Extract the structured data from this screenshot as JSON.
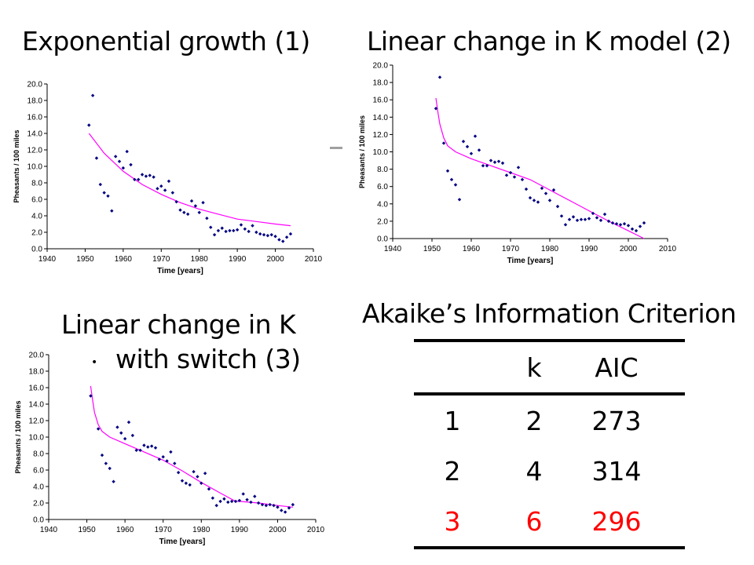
{
  "slide": {
    "titles": {
      "model1": "Exponential growth (1)",
      "model2": "Linear change in K model (2)",
      "model3_line1": "Linear change in K",
      "model3_line2": "with switch (3)",
      "aic": "Akaike’s Information Criterion"
    },
    "bullet": "•"
  },
  "aic_table": {
    "headers": [
      "",
      "k",
      "AIC"
    ],
    "rows": [
      {
        "model": "1",
        "k": "2",
        "aic": "273"
      },
      {
        "model": "2",
        "k": "4",
        "aic": "314"
      },
      {
        "model": "3",
        "k": "6",
        "aic": "296"
      }
    ],
    "highlight_color": "#ff0000"
  },
  "chart_data": [
    {
      "type": "scatter",
      "id": "exp",
      "xlabel": "Time [years]",
      "ylabel": "Pheasants / 100 miles",
      "xlim": [
        1940,
        2010
      ],
      "ylim": [
        0,
        20
      ],
      "xticks": [
        1940,
        1950,
        1960,
        1970,
        1980,
        1990,
        2000,
        2010
      ],
      "yticks": [
        0,
        2,
        4,
        6,
        8,
        10,
        12,
        14,
        16,
        18,
        20
      ],
      "grid": false,
      "point_color": "#000080",
      "fit_color": "#ff00ff",
      "points": [
        [
          1951,
          15.0
        ],
        [
          1952,
          18.6
        ],
        [
          1953,
          11.0
        ],
        [
          1954,
          7.8
        ],
        [
          1955,
          6.8
        ],
        [
          1956,
          6.4
        ],
        [
          1957,
          4.6
        ],
        [
          1958,
          11.2
        ],
        [
          1959,
          10.6
        ],
        [
          1960,
          9.8
        ],
        [
          1961,
          11.8
        ],
        [
          1962,
          10.2
        ],
        [
          1963,
          8.4
        ],
        [
          1964,
          8.4
        ],
        [
          1965,
          9.0
        ],
        [
          1966,
          8.8
        ],
        [
          1967,
          8.9
        ],
        [
          1968,
          8.7
        ],
        [
          1969,
          7.3
        ],
        [
          1970,
          7.6
        ],
        [
          1971,
          7.1
        ],
        [
          1972,
          8.2
        ],
        [
          1973,
          6.8
        ],
        [
          1974,
          5.7
        ],
        [
          1975,
          4.7
        ],
        [
          1976,
          4.4
        ],
        [
          1977,
          4.2
        ],
        [
          1978,
          5.8
        ],
        [
          1979,
          5.2
        ],
        [
          1980,
          4.4
        ],
        [
          1981,
          5.6
        ],
        [
          1982,
          3.7
        ],
        [
          1983,
          2.6
        ],
        [
          1984,
          1.7
        ],
        [
          1985,
          2.2
        ],
        [
          1986,
          2.5
        ],
        [
          1987,
          2.1
        ],
        [
          1988,
          2.2
        ],
        [
          1989,
          2.2
        ],
        [
          1990,
          2.3
        ],
        [
          1991,
          2.9
        ],
        [
          1992,
          2.4
        ],
        [
          1993,
          2.1
        ],
        [
          1994,
          2.8
        ],
        [
          1995,
          2.0
        ],
        [
          1996,
          1.8
        ],
        [
          1997,
          1.7
        ],
        [
          1998,
          1.6
        ],
        [
          1999,
          1.7
        ],
        [
          2000,
          1.5
        ],
        [
          2001,
          1.1
        ],
        [
          2002,
          0.9
        ],
        [
          2003,
          1.4
        ],
        [
          2004,
          1.8
        ]
      ],
      "fit": [
        [
          1951,
          14.0
        ],
        [
          1955,
          11.6
        ],
        [
          1960,
          9.4
        ],
        [
          1965,
          7.8
        ],
        [
          1970,
          6.6
        ],
        [
          1975,
          5.6
        ],
        [
          1980,
          4.8
        ],
        [
          1985,
          4.2
        ],
        [
          1990,
          3.6
        ],
        [
          1995,
          3.3
        ],
        [
          2000,
          3.0
        ],
        [
          2004,
          2.8
        ]
      ]
    },
    {
      "type": "scatter",
      "id": "linK",
      "xlabel": "Time [years]",
      "ylabel": "Pheasants / 100 miles",
      "xlim": [
        1940,
        2010
      ],
      "ylim": [
        0,
        20
      ],
      "xticks": [
        1940,
        1950,
        1960,
        1970,
        1980,
        1990,
        2000,
        2010
      ],
      "yticks": [
        0,
        2,
        4,
        6,
        8,
        10,
        12,
        14,
        16,
        18,
        20
      ],
      "grid": false,
      "point_color": "#000080",
      "fit_color": "#ff00ff",
      "points": [
        [
          1951,
          15.0
        ],
        [
          1952,
          18.6
        ],
        [
          1953,
          11.0
        ],
        [
          1954,
          7.8
        ],
        [
          1955,
          6.8
        ],
        [
          1956,
          6.2
        ],
        [
          1957,
          4.5
        ],
        [
          1958,
          11.2
        ],
        [
          1959,
          10.6
        ],
        [
          1960,
          9.8
        ],
        [
          1961,
          11.8
        ],
        [
          1962,
          10.2
        ],
        [
          1963,
          8.4
        ],
        [
          1964,
          8.4
        ],
        [
          1965,
          9.0
        ],
        [
          1966,
          8.8
        ],
        [
          1967,
          8.9
        ],
        [
          1968,
          8.7
        ],
        [
          1969,
          7.3
        ],
        [
          1970,
          7.6
        ],
        [
          1971,
          7.1
        ],
        [
          1972,
          8.2
        ],
        [
          1973,
          6.8
        ],
        [
          1974,
          5.7
        ],
        [
          1975,
          4.7
        ],
        [
          1976,
          4.4
        ],
        [
          1977,
          4.2
        ],
        [
          1978,
          5.8
        ],
        [
          1979,
          5.2
        ],
        [
          1980,
          4.4
        ],
        [
          1981,
          5.6
        ],
        [
          1982,
          3.7
        ],
        [
          1983,
          2.6
        ],
        [
          1984,
          1.6
        ],
        [
          1985,
          2.2
        ],
        [
          1986,
          2.5
        ],
        [
          1987,
          2.1
        ],
        [
          1988,
          2.2
        ],
        [
          1989,
          2.2
        ],
        [
          1990,
          2.3
        ],
        [
          1991,
          2.9
        ],
        [
          1992,
          2.4
        ],
        [
          1993,
          2.1
        ],
        [
          1994,
          2.8
        ],
        [
          1995,
          2.0
        ],
        [
          1996,
          1.8
        ],
        [
          1997,
          1.7
        ],
        [
          1998,
          1.6
        ],
        [
          1999,
          1.7
        ],
        [
          2000,
          1.5
        ],
        [
          2001,
          1.1
        ],
        [
          2002,
          0.9
        ],
        [
          2003,
          1.4
        ],
        [
          2004,
          1.8
        ]
      ],
      "fit": [
        [
          1951,
          16.2
        ],
        [
          1951.5,
          14.6
        ],
        [
          1952,
          13.2
        ],
        [
          1953,
          11.6
        ],
        [
          1954,
          10.7
        ],
        [
          1956,
          10.0
        ],
        [
          1960,
          9.2
        ],
        [
          1965,
          8.4
        ],
        [
          1970,
          7.6
        ],
        [
          1975,
          6.8
        ],
        [
          1980,
          5.6
        ],
        [
          1985,
          4.4
        ],
        [
          1990,
          3.2
        ],
        [
          1995,
          2.0
        ],
        [
          2000,
          0.9
        ],
        [
          2004,
          0.0
        ]
      ]
    },
    {
      "type": "scatter",
      "id": "linKswitch",
      "xlabel": "Time [years]",
      "ylabel": "Pheasants / 100 miles",
      "xlim": [
        1940,
        2010
      ],
      "ylim": [
        0,
        20
      ],
      "xticks": [
        1940,
        1950,
        1960,
        1970,
        1980,
        1990,
        2000,
        2010
      ],
      "yticks": [
        0,
        2,
        4,
        6,
        8,
        10,
        12,
        14,
        16,
        18,
        20
      ],
      "grid": false,
      "point_color": "#000080",
      "fit_color": "#ff00ff",
      "points": [
        [
          1951,
          15.0
        ],
        [
          1953,
          11.0
        ],
        [
          1954,
          7.8
        ],
        [
          1955,
          6.8
        ],
        [
          1956,
          6.2
        ],
        [
          1957,
          4.6
        ],
        [
          1958,
          11.2
        ],
        [
          1959,
          10.5
        ],
        [
          1960,
          9.8
        ],
        [
          1961,
          11.8
        ],
        [
          1962,
          10.2
        ],
        [
          1963,
          8.4
        ],
        [
          1964,
          8.4
        ],
        [
          1965,
          9.0
        ],
        [
          1966,
          8.8
        ],
        [
          1967,
          8.9
        ],
        [
          1968,
          8.7
        ],
        [
          1969,
          7.3
        ],
        [
          1970,
          7.6
        ],
        [
          1971,
          7.1
        ],
        [
          1972,
          8.2
        ],
        [
          1973,
          6.8
        ],
        [
          1974,
          5.7
        ],
        [
          1975,
          4.7
        ],
        [
          1976,
          4.4
        ],
        [
          1977,
          4.2
        ],
        [
          1978,
          5.8
        ],
        [
          1979,
          5.2
        ],
        [
          1980,
          4.4
        ],
        [
          1981,
          5.6
        ],
        [
          1982,
          3.7
        ],
        [
          1983,
          2.6
        ],
        [
          1984,
          1.7
        ],
        [
          1985,
          2.2
        ],
        [
          1986,
          2.5
        ],
        [
          1987,
          2.1
        ],
        [
          1988,
          2.2
        ],
        [
          1989,
          2.2
        ],
        [
          1990,
          2.3
        ],
        [
          1991,
          3.1
        ],
        [
          1992,
          2.4
        ],
        [
          1993,
          2.1
        ],
        [
          1994,
          2.8
        ],
        [
          1995,
          2.0
        ],
        [
          1996,
          1.8
        ],
        [
          1997,
          1.7
        ],
        [
          1998,
          1.8
        ],
        [
          1999,
          1.7
        ],
        [
          2000,
          1.5
        ],
        [
          2001,
          1.1
        ],
        [
          2002,
          0.9
        ],
        [
          2003,
          1.4
        ],
        [
          2004,
          1.8
        ]
      ],
      "fit": [
        [
          1951,
          16.2
        ],
        [
          1951.5,
          14.5
        ],
        [
          1952,
          13.0
        ],
        [
          1953,
          11.5
        ],
        [
          1954,
          10.7
        ],
        [
          1956,
          10.0
        ],
        [
          1960,
          9.2
        ],
        [
          1965,
          8.2
        ],
        [
          1970,
          7.2
        ],
        [
          1975,
          5.9
        ],
        [
          1980,
          4.5
        ],
        [
          1985,
          3.2
        ],
        [
          1989,
          2.2
        ],
        [
          1990,
          2.2
        ],
        [
          1995,
          2.0
        ],
        [
          2000,
          1.7
        ],
        [
          2004,
          1.5
        ]
      ]
    }
  ]
}
